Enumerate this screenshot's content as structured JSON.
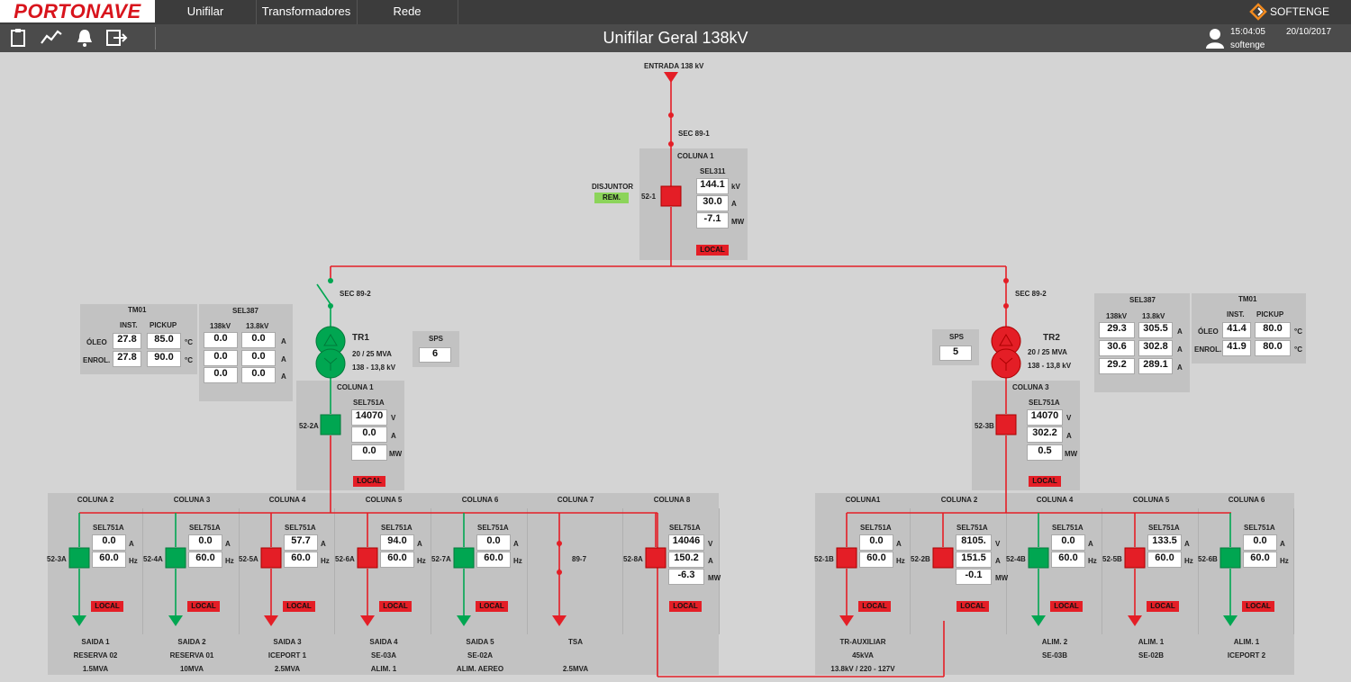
{
  "app": {
    "logo": "PORTONAVE",
    "brand": "SOFTENGE",
    "title": "Unifilar Geral 138kV",
    "time": "15:04:05",
    "date": "20/10/2017",
    "user": "softenge"
  },
  "menu": [
    "Unifilar",
    "Transformadores",
    "Rede"
  ],
  "toolbar_icons": [
    "clipboard-icon",
    "trend-icon",
    "bell-icon",
    "logout-icon"
  ],
  "colors": {
    "energized": "#e41e26",
    "deenergized": "#00a651",
    "remote": "#8cd45a"
  },
  "main": {
    "entrada": "ENTRADA 138 kV",
    "sec_89_1": "SEC 89-1",
    "coluna1": {
      "title": "COLUNA 1",
      "relay": "SEL311",
      "breaker": "52-1",
      "disjuntor": "DISJUNTOR",
      "rem": "REM.",
      "values": [
        "144.1",
        "30.0",
        "-7.1"
      ],
      "units": [
        "kV",
        "A",
        "MW"
      ],
      "local": "LOCAL"
    }
  },
  "tr1": {
    "sec": "SEC 89-2",
    "name": "TR1",
    "rating": "20 / 25 MVA",
    "voltage": "138 - 13,8 kV",
    "sps": {
      "title": "SPS",
      "value": "6"
    },
    "tm01": {
      "title": "TM01",
      "col1": "INST.",
      "col2": "PICKUP",
      "rows": [
        {
          "label": "ÓLEO",
          "inst": "27.8",
          "pickup": "85.0",
          "unit": "°C"
        },
        {
          "label": "ENROL.",
          "inst": "27.8",
          "pickup": "90.0",
          "unit": "°C"
        }
      ]
    },
    "sel387": {
      "title": "SEL387",
      "col1": "138kV",
      "col2": "13.8kV",
      "rows": [
        [
          "0.0",
          "0.0",
          "A"
        ],
        [
          "0.0",
          "0.0",
          "A"
        ],
        [
          "0.0",
          "0.0",
          "A"
        ]
      ]
    },
    "coluna": {
      "title": "COLUNA 1",
      "relay": "SEL751A",
      "breaker": "52-2A",
      "values": [
        "14070",
        "0.0",
        "0.0"
      ],
      "units": [
        "V",
        "A",
        "MW"
      ],
      "local": "LOCAL"
    }
  },
  "tr2": {
    "sec": "SEC 89-2",
    "name": "TR2",
    "rating": "20 / 25 MVA",
    "voltage": "138 - 13,8 kV",
    "sps": {
      "title": "SPS",
      "value": "5"
    },
    "tm01": {
      "title": "TM01",
      "col1": "INST.",
      "col2": "PICKUP",
      "rows": [
        {
          "label": "ÓLEO",
          "inst": "41.4",
          "pickup": "80.0",
          "unit": "°C"
        },
        {
          "label": "ENROL.",
          "inst": "41.9",
          "pickup": "80.0",
          "unit": "°C"
        }
      ]
    },
    "sel387": {
      "title": "SEL387",
      "col1": "138kV",
      "col2": "13.8kV",
      "rows": [
        [
          "29.3",
          "305.5",
          "A"
        ],
        [
          "30.6",
          "302.8",
          "A"
        ],
        [
          "29.2",
          "289.1",
          "A"
        ]
      ]
    },
    "coluna": {
      "title": "COLUNA 3",
      "relay": "SEL751A",
      "breaker": "52-3B",
      "values": [
        "14070",
        "302.2",
        "0.5"
      ],
      "units": [
        "V",
        "A",
        "MW"
      ],
      "local": "LOCAL"
    }
  },
  "feeders_left": [
    {
      "col": "COLUNA 2",
      "relay": "SEL751A",
      "breaker": "52-3A",
      "values": [
        "0.0",
        "60.0"
      ],
      "units": [
        "A",
        "Hz"
      ],
      "state": "off",
      "local": "LOCAL",
      "l1": "SAIDA 1",
      "l2": "RESERVA 02",
      "l3": "1.5MVA"
    },
    {
      "col": "COLUNA 3",
      "relay": "SEL751A",
      "breaker": "52-4A",
      "values": [
        "0.0",
        "60.0"
      ],
      "units": [
        "A",
        "Hz"
      ],
      "state": "off",
      "local": "LOCAL",
      "l1": "SAIDA 2",
      "l2": "RESERVA 01",
      "l3": "10MVA"
    },
    {
      "col": "COLUNA 4",
      "relay": "SEL751A",
      "breaker": "52-5A",
      "values": [
        "57.7",
        "60.0"
      ],
      "units": [
        "A",
        "Hz"
      ],
      "state": "on",
      "local": "LOCAL",
      "l1": "SAIDA 3",
      "l2": "ICEPORT 1",
      "l3": "2.5MVA"
    },
    {
      "col": "COLUNA 5",
      "relay": "SEL751A",
      "breaker": "52-6A",
      "values": [
        "94.0",
        "60.0"
      ],
      "units": [
        "A",
        "Hz"
      ],
      "state": "on",
      "local": "LOCAL",
      "l1": "SAIDA 4",
      "l2": "SE-03A",
      "l3": "ALIM. 1"
    },
    {
      "col": "COLUNA 6",
      "relay": "SEL751A",
      "breaker": "52-7A",
      "values": [
        "0.0",
        "60.0"
      ],
      "units": [
        "A",
        "Hz"
      ],
      "state": "off",
      "local": "LOCAL",
      "l1": "SAIDA 5",
      "l2": "SE-02A",
      "l3": "ALIM. AEREO"
    },
    {
      "col": "COLUNA 7",
      "relay": "",
      "breaker": "89-7",
      "values": [],
      "units": [],
      "state": "on",
      "local": "",
      "l1": "TSA",
      "l2": "",
      "l3": "2.5MVA"
    },
    {
      "col": "COLUNA 8",
      "relay": "SEL751A",
      "breaker": "52-8A",
      "values": [
        "14046",
        "150.2",
        "-6.3"
      ],
      "units": [
        "V",
        "A",
        "MW"
      ],
      "state": "on",
      "local": "LOCAL",
      "l1": "",
      "l2": "",
      "l3": ""
    }
  ],
  "feeders_right": [
    {
      "col": "COLUNA1",
      "relay": "SEL751A",
      "breaker": "52-1B",
      "values": [
        "0.0",
        "60.0"
      ],
      "units": [
        "A",
        "Hz"
      ],
      "state": "on",
      "local": "LOCAL",
      "l1": "TR-AUXILIAR",
      "l2": "45kVA",
      "l3": "13.8kV / 220 - 127V"
    },
    {
      "col": "COLUNA 2",
      "relay": "SEL751A",
      "breaker": "52-2B",
      "values": [
        "8105.",
        "151.5",
        "-0.1"
      ],
      "units": [
        "V",
        "A",
        "MW"
      ],
      "state": "on",
      "local": "LOCAL",
      "l1": "",
      "l2": "",
      "l3": ""
    },
    {
      "col": "COLUNA 4",
      "relay": "SEL751A",
      "breaker": "52-4B",
      "values": [
        "0.0",
        "60.0"
      ],
      "units": [
        "A",
        "Hz"
      ],
      "state": "off",
      "local": "LOCAL",
      "l1": "ALIM. 2",
      "l2": "SE-03B",
      "l3": ""
    },
    {
      "col": "COLUNA 5",
      "relay": "SEL751A",
      "breaker": "52-5B",
      "values": [
        "133.5",
        "60.0"
      ],
      "units": [
        "A",
        "Hz"
      ],
      "state": "on",
      "local": "LOCAL",
      "l1": "ALIM. 1",
      "l2": "SE-02B",
      "l3": ""
    },
    {
      "col": "COLUNA 6",
      "relay": "SEL751A",
      "breaker": "52-6B",
      "values": [
        "0.0",
        "60.0"
      ],
      "units": [
        "A",
        "Hz"
      ],
      "state": "off",
      "local": "LOCAL",
      "l1": "ALIM. 1",
      "l2": "ICEPORT 2",
      "l3": ""
    }
  ]
}
